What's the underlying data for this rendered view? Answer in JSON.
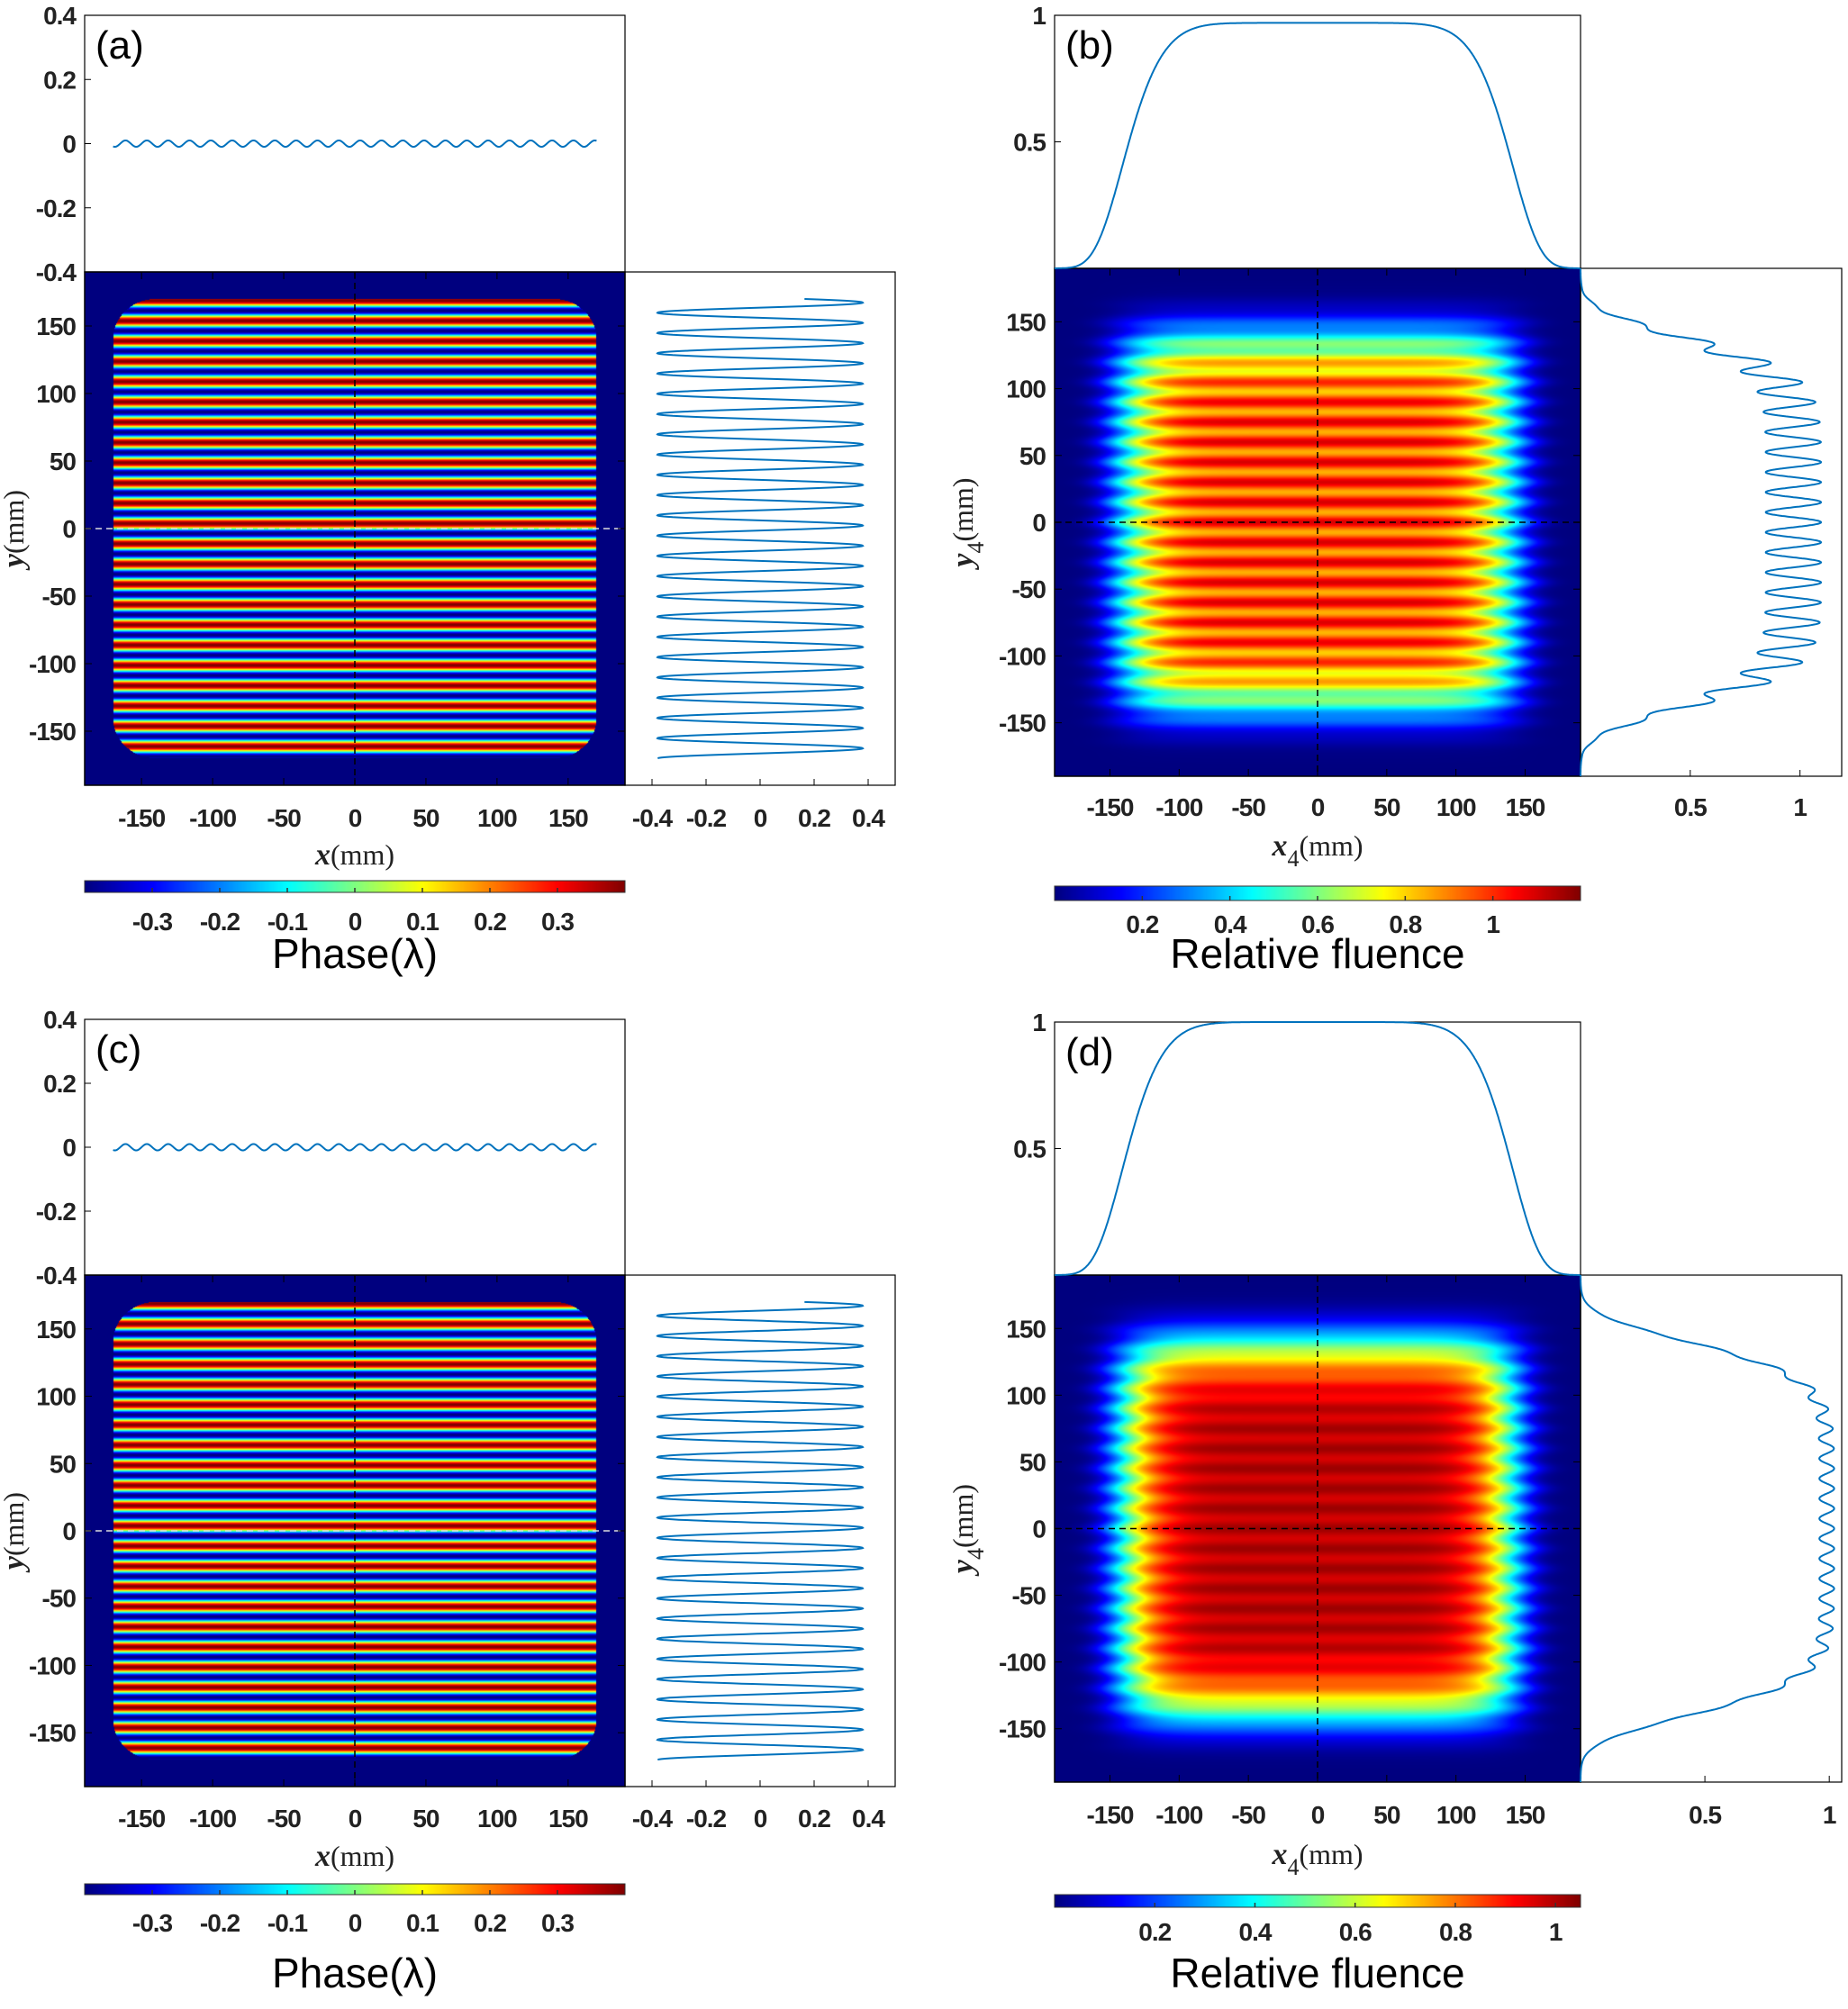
{
  "colors": {
    "profile_line": "#0072BD",
    "axis": "#000000"
  },
  "chart_data": [
    {
      "type": "heatmap",
      "panel_label": "(a)",
      "quantity": "phase",
      "xlabel": {
        "var": "x",
        "sub": "",
        "unit": "(mm)"
      },
      "ylabel": {
        "var": "y",
        "sub": "",
        "unit": "(mm)"
      },
      "xlim": [
        -190,
        190
      ],
      "ylim": [
        -190,
        190
      ],
      "xticks": [
        -150,
        -100,
        -50,
        0,
        50,
        100,
        150
      ],
      "yticks": [
        150,
        100,
        50,
        0,
        -50,
        -100,
        -150
      ],
      "top_profile": {
        "ylim": [
          -0.4,
          0.4
        ],
        "yticks": [
          0.4,
          0.2,
          0,
          -0.2,
          -0.4
        ],
        "amplitude": 0.01,
        "period_mm": 15,
        "extent_mm": 170
      },
      "side_profile": {
        "xlim": [
          -0.5,
          0.5
        ],
        "xticks": [
          -0.4,
          -0.2,
          0,
          0.2,
          0.4
        ],
        "amplitude": 0.38,
        "period_mm": 15,
        "extent_mm": 170
      },
      "field": {
        "amplitude": 0.4,
        "period_mm": 15,
        "aperture_half_mm": 170,
        "corner_radius_mm": 30
      },
      "colorbar": {
        "title": "Phase(λ)",
        "range": [
          -0.4,
          0.4
        ],
        "ticks": [
          -0.3,
          -0.2,
          -0.1,
          0,
          0.1,
          0.2,
          0.3
        ]
      }
    },
    {
      "type": "heatmap",
      "panel_label": "(b)",
      "quantity": "fluence",
      "xlabel": {
        "var": "x",
        "sub": "4",
        "unit": "(mm)"
      },
      "ylabel": {
        "var": "y",
        "sub": "4",
        "unit": "(mm)"
      },
      "xlim": [
        -190,
        190
      ],
      "ylim": [
        -190,
        190
      ],
      "xticks": [
        -150,
        -100,
        -50,
        0,
        50,
        100,
        150
      ],
      "yticks": [
        150,
        100,
        50,
        0,
        -50,
        -100,
        -150
      ],
      "top_profile": {
        "ylim": [
          0,
          1
        ],
        "yticks": [
          1,
          0.5
        ],
        "peak": 0.97
      },
      "side_profile": {
        "xlim": [
          0,
          1.19
        ],
        "xticks": [
          0.5,
          1
        ]
      },
      "field": {
        "peak": 0.97,
        "half_width_mm": 137,
        "order": 8,
        "modulation": 0.13,
        "period_mm": 15
      },
      "colorbar": {
        "title": "Relative fluence",
        "range": [
          0,
          1.2
        ],
        "ticks": [
          0.2,
          0.4,
          0.6,
          0.8,
          1
        ]
      }
    },
    {
      "type": "heatmap",
      "panel_label": "(c)",
      "quantity": "phase",
      "xlabel": {
        "var": "x",
        "sub": "",
        "unit": "(mm)"
      },
      "ylabel": {
        "var": "y",
        "sub": "",
        "unit": "(mm)"
      },
      "xlim": [
        -190,
        190
      ],
      "ylim": [
        -190,
        190
      ],
      "xticks": [
        -150,
        -100,
        -50,
        0,
        50,
        100,
        150
      ],
      "yticks": [
        150,
        100,
        50,
        0,
        -50,
        -100,
        -150
      ],
      "top_profile": {
        "ylim": [
          -0.4,
          0.4
        ],
        "yticks": [
          0.4,
          0.2,
          0,
          -0.2,
          -0.4
        ],
        "amplitude": 0.01,
        "period_mm": 15,
        "extent_mm": 170
      },
      "side_profile": {
        "xlim": [
          -0.5,
          0.5
        ],
        "xticks": [
          -0.4,
          -0.2,
          0,
          0.2,
          0.4
        ],
        "amplitude": 0.38,
        "period_mm": 15,
        "extent_mm": 170
      },
      "field": {
        "amplitude": 0.4,
        "period_mm": 15,
        "aperture_half_mm": 170,
        "corner_radius_mm": 30
      },
      "colorbar": {
        "title": "Phase(λ)",
        "range": [
          -0.4,
          0.4
        ],
        "ticks": [
          -0.3,
          -0.2,
          -0.1,
          0,
          0.1,
          0.2,
          0.3
        ]
      }
    },
    {
      "type": "heatmap",
      "panel_label": "(d)",
      "quantity": "fluence",
      "xlabel": {
        "var": "x",
        "sub": "4",
        "unit": "(mm)"
      },
      "ylabel": {
        "var": "y",
        "sub": "4",
        "unit": "(mm)"
      },
      "xlim": [
        -190,
        190
      ],
      "ylim": [
        -190,
        190
      ],
      "xticks": [
        -150,
        -100,
        -50,
        0,
        50,
        100,
        150
      ],
      "yticks": [
        150,
        100,
        50,
        0,
        -50,
        -100,
        -150
      ],
      "top_profile": {
        "ylim": [
          0,
          1
        ],
        "yticks": [
          1,
          0.5
        ],
        "peak": 1.0
      },
      "side_profile": {
        "xlim": [
          0,
          1.05
        ],
        "xticks": [
          0.5,
          1
        ]
      },
      "field": {
        "peak": 0.99,
        "half_width_mm": 137,
        "order": 8,
        "modulation": 0.03,
        "period_mm": 15
      },
      "colorbar": {
        "title": "Relative fluence",
        "range": [
          0,
          1.05
        ],
        "ticks": [
          0.2,
          0.4,
          0.6,
          0.8,
          1
        ]
      }
    }
  ]
}
